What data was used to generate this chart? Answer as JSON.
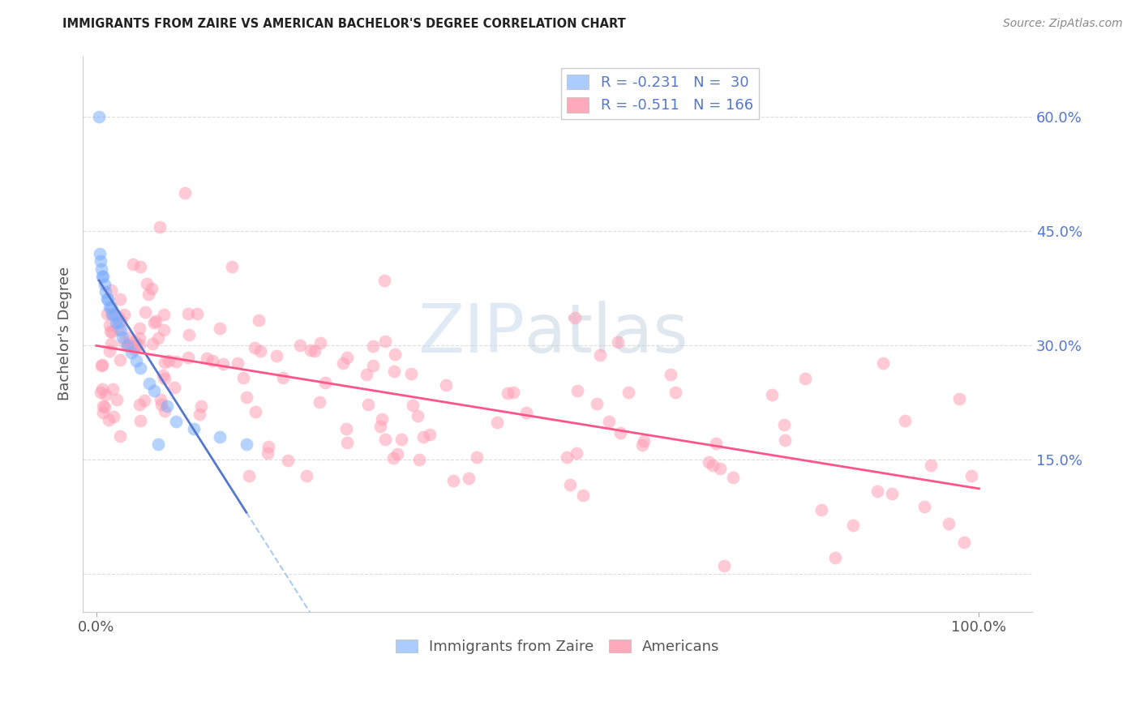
{
  "title": "IMMIGRANTS FROM ZAIRE VS AMERICAN BACHELOR'S DEGREE CORRELATION CHART",
  "source": "Source: ZipAtlas.com",
  "ylabel": "Bachelor's Degree",
  "ytick_vals": [
    0.0,
    0.15,
    0.3,
    0.45,
    0.6
  ],
  "ytick_labels_right": [
    "",
    "15.0%",
    "30.0%",
    "45.0%",
    "60.0%"
  ],
  "xlim": [
    -0.015,
    1.06
  ],
  "ylim": [
    -0.05,
    0.68
  ],
  "watermark_zip": "ZIP",
  "watermark_atlas": "atlas",
  "legend_R_zaire": "-0.231",
  "legend_N_zaire": "30",
  "legend_R_american": "-0.511",
  "legend_N_american": "166",
  "zaire_color": "#7AADFF",
  "american_color": "#FF9DB3",
  "zaire_line_color": "#5577CC",
  "american_line_color": "#FF5588",
  "dashed_line_color": "#AACCEE",
  "title_color": "#222222",
  "source_color": "#888888",
  "axis_label_color": "#555555",
  "right_tick_color": "#5577CC",
  "bottom_tick_color": "#555555",
  "grid_color": "#DDDDDD",
  "legend_text_dark": "#333333",
  "legend_text_blue": "#5577CC",
  "zaire_patch_color": "#AACCFF",
  "american_patch_color": "#FFAABB"
}
